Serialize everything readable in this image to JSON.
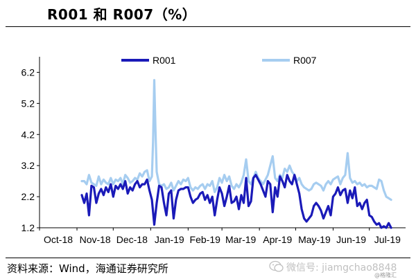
{
  "title": "R001 和 R007（%）",
  "source": "资料来源：Wind，海通证券研究所",
  "watermark": {
    "wechat": "微信号: jiamgchao8848",
    "brand": "@格隆汇"
  },
  "colors": {
    "r001": "#1a1ab8",
    "r007": "#a6cdf0",
    "axis": "#000000"
  },
  "chart_data": {
    "type": "line",
    "title": "R001 和 R007（%）",
    "y_ticks": [
      "1.2",
      "2.2",
      "3.2",
      "4.2",
      "5.2",
      "6.2"
    ],
    "ylim": [
      1.2,
      6.7
    ],
    "x_ticks": [
      "Oct-18",
      "Nov-18",
      "Dec-18",
      "Jan-19",
      "Feb-19",
      "Mar-19",
      "Apr-19",
      "May-19",
      "Jun-19",
      "Jul-19"
    ],
    "x_range": [
      "2018-10-01",
      "2019-07-31"
    ],
    "grid": false,
    "legend": "top",
    "series": [
      {
        "name": "R001",
        "color": "#1a1ab8",
        "points": [
          [
            "2018-11-05",
            2.25
          ],
          [
            "2018-11-07",
            2.0
          ],
          [
            "2018-11-09",
            2.3
          ],
          [
            "2018-11-11",
            1.6
          ],
          [
            "2018-11-13",
            2.55
          ],
          [
            "2018-11-15",
            2.5
          ],
          [
            "2018-11-17",
            2.0
          ],
          [
            "2018-11-19",
            2.3
          ],
          [
            "2018-11-21",
            2.45
          ],
          [
            "2018-11-23",
            2.25
          ],
          [
            "2018-11-25",
            2.5
          ],
          [
            "2018-11-27",
            2.35
          ],
          [
            "2018-11-29",
            2.6
          ],
          [
            "2018-12-01",
            2.2
          ],
          [
            "2018-12-03",
            2.55
          ],
          [
            "2018-12-05",
            2.45
          ],
          [
            "2018-12-07",
            2.6
          ],
          [
            "2018-12-09",
            2.45
          ],
          [
            "2018-12-11",
            2.7
          ],
          [
            "2018-12-13",
            2.3
          ],
          [
            "2018-12-15",
            2.5
          ],
          [
            "2018-12-17",
            2.4
          ],
          [
            "2018-12-19",
            2.6
          ],
          [
            "2018-12-21",
            2.7
          ],
          [
            "2018-12-23",
            2.5
          ],
          [
            "2018-12-25",
            2.6
          ],
          [
            "2018-12-27",
            2.6
          ],
          [
            "2018-12-29",
            2.75
          ],
          [
            "2018-12-31",
            2.4
          ],
          [
            "2019-01-02",
            2.1
          ],
          [
            "2019-01-04",
            1.3
          ],
          [
            "2019-01-06",
            2.0
          ],
          [
            "2019-01-08",
            2.55
          ],
          [
            "2019-01-10",
            2.5
          ],
          [
            "2019-01-12",
            2.0
          ],
          [
            "2019-01-14",
            1.6
          ],
          [
            "2019-01-16",
            2.3
          ],
          [
            "2019-01-18",
            2.4
          ],
          [
            "2019-01-20",
            1.5
          ],
          [
            "2019-01-22",
            2.1
          ],
          [
            "2019-01-24",
            2.4
          ],
          [
            "2019-01-26",
            2.45
          ],
          [
            "2019-01-28",
            2.45
          ],
          [
            "2019-01-30",
            2.5
          ],
          [
            "2019-02-01",
            2.5
          ],
          [
            "2019-02-03",
            2.2
          ],
          [
            "2019-02-05",
            2.0
          ],
          [
            "2019-02-07",
            2.1
          ],
          [
            "2019-02-09",
            2.15
          ],
          [
            "2019-02-11",
            2.3
          ],
          [
            "2019-02-13",
            2.35
          ],
          [
            "2019-02-15",
            2.1
          ],
          [
            "2019-02-17",
            2.25
          ],
          [
            "2019-02-19",
            2.0
          ],
          [
            "2019-02-21",
            2.2
          ],
          [
            "2019-02-23",
            1.6
          ],
          [
            "2019-02-25",
            2.1
          ],
          [
            "2019-02-27",
            2.5
          ],
          [
            "2019-03-01",
            2.3
          ],
          [
            "2019-03-03",
            1.9
          ],
          [
            "2019-03-05",
            2.2
          ],
          [
            "2019-03-07",
            2.55
          ],
          [
            "2019-03-09",
            2.0
          ],
          [
            "2019-03-11",
            2.05
          ],
          [
            "2019-03-13",
            2.2
          ],
          [
            "2019-03-15",
            1.8
          ],
          [
            "2019-03-17",
            2.25
          ],
          [
            "2019-03-19",
            2.0
          ],
          [
            "2019-03-21",
            2.8
          ],
          [
            "2019-03-23",
            1.9
          ],
          [
            "2019-03-25",
            2.05
          ],
          [
            "2019-03-27",
            2.8
          ],
          [
            "2019-03-29",
            2.9
          ],
          [
            "2019-03-31",
            2.75
          ],
          [
            "2019-04-02",
            2.6
          ],
          [
            "2019-04-04",
            2.4
          ],
          [
            "2019-04-06",
            2.2
          ],
          [
            "2019-04-08",
            2.7
          ],
          [
            "2019-04-10",
            2.6
          ],
          [
            "2019-04-12",
            1.7
          ],
          [
            "2019-04-14",
            2.5
          ],
          [
            "2019-04-16",
            2.2
          ],
          [
            "2019-04-18",
            2.85
          ],
          [
            "2019-04-20",
            2.7
          ],
          [
            "2019-04-22",
            2.5
          ],
          [
            "2019-04-24",
            2.9
          ],
          [
            "2019-04-26",
            2.7
          ],
          [
            "2019-04-28",
            2.6
          ],
          [
            "2019-04-30",
            2.9
          ],
          [
            "2019-05-02",
            2.6
          ],
          [
            "2019-05-04",
            2.3
          ],
          [
            "2019-05-06",
            1.8
          ],
          [
            "2019-05-08",
            1.5
          ],
          [
            "2019-05-10",
            1.4
          ],
          [
            "2019-05-12",
            1.5
          ],
          [
            "2019-05-14",
            1.6
          ],
          [
            "2019-05-16",
            1.9
          ],
          [
            "2019-05-18",
            2.0
          ],
          [
            "2019-05-20",
            1.9
          ],
          [
            "2019-05-22",
            1.75
          ],
          [
            "2019-05-24",
            1.5
          ],
          [
            "2019-05-26",
            1.7
          ],
          [
            "2019-05-28",
            1.9
          ],
          [
            "2019-05-30",
            1.6
          ],
          [
            "2019-06-01",
            2.2
          ],
          [
            "2019-06-03",
            2.3
          ],
          [
            "2019-06-05",
            2.5
          ],
          [
            "2019-06-07",
            2.25
          ],
          [
            "2019-06-09",
            2.4
          ],
          [
            "2019-06-11",
            2.45
          ],
          [
            "2019-06-13",
            2.0
          ],
          [
            "2019-06-15",
            2.4
          ],
          [
            "2019-06-17",
            2.15
          ],
          [
            "2019-06-19",
            2.5
          ],
          [
            "2019-06-21",
            1.9
          ],
          [
            "2019-06-23",
            2.0
          ],
          [
            "2019-06-25",
            1.8
          ],
          [
            "2019-06-27",
            2.0
          ],
          [
            "2019-06-29",
            2.1
          ],
          [
            "2019-07-01",
            1.6
          ],
          [
            "2019-07-03",
            1.55
          ],
          [
            "2019-07-05",
            1.4
          ],
          [
            "2019-07-07",
            1.3
          ],
          [
            "2019-07-09",
            1.35
          ],
          [
            "2019-07-11",
            1.2
          ],
          [
            "2019-07-13",
            1.25
          ],
          [
            "2019-07-15",
            1.2
          ],
          [
            "2019-07-17",
            1.35
          ],
          [
            "2019-07-19",
            1.2
          ]
        ]
      },
      {
        "name": "R007",
        "color": "#a6cdf0",
        "points": [
          [
            "2018-11-05",
            2.7
          ],
          [
            "2018-11-07",
            2.7
          ],
          [
            "2018-11-09",
            2.6
          ],
          [
            "2018-11-11",
            2.9
          ],
          [
            "2018-11-13",
            2.65
          ],
          [
            "2018-11-15",
            2.6
          ],
          [
            "2018-11-17",
            2.55
          ],
          [
            "2018-11-19",
            2.85
          ],
          [
            "2018-11-21",
            2.6
          ],
          [
            "2018-11-23",
            2.75
          ],
          [
            "2018-11-25",
            2.65
          ],
          [
            "2018-11-27",
            2.6
          ],
          [
            "2018-11-29",
            2.8
          ],
          [
            "2018-12-01",
            2.6
          ],
          [
            "2018-12-03",
            2.75
          ],
          [
            "2018-12-05",
            2.7
          ],
          [
            "2018-12-07",
            2.8
          ],
          [
            "2018-12-09",
            2.6
          ],
          [
            "2018-12-11",
            2.9
          ],
          [
            "2018-12-13",
            2.8
          ],
          [
            "2018-12-15",
            2.65
          ],
          [
            "2018-12-17",
            2.7
          ],
          [
            "2018-12-19",
            2.8
          ],
          [
            "2018-12-21",
            2.75
          ],
          [
            "2018-12-23",
            2.95
          ],
          [
            "2018-12-25",
            2.85
          ],
          [
            "2018-12-27",
            3.0
          ],
          [
            "2018-12-29",
            3.05
          ],
          [
            "2018-12-31",
            2.7
          ],
          [
            "2019-01-02",
            2.85
          ],
          [
            "2019-01-03",
            4.0
          ],
          [
            "2019-01-04",
            5.95
          ],
          [
            "2019-01-05",
            4.3
          ],
          [
            "2019-01-06",
            3.0
          ],
          [
            "2019-01-08",
            2.6
          ],
          [
            "2019-01-10",
            2.55
          ],
          [
            "2019-01-12",
            2.6
          ],
          [
            "2019-01-14",
            2.45
          ],
          [
            "2019-01-16",
            2.5
          ],
          [
            "2019-01-18",
            2.65
          ],
          [
            "2019-01-20",
            2.4
          ],
          [
            "2019-01-22",
            2.55
          ],
          [
            "2019-01-24",
            2.7
          ],
          [
            "2019-01-26",
            2.6
          ],
          [
            "2019-01-28",
            2.75
          ],
          [
            "2019-01-30",
            2.7
          ],
          [
            "2019-02-01",
            2.8
          ],
          [
            "2019-02-03",
            2.5
          ],
          [
            "2019-02-05",
            2.4
          ],
          [
            "2019-02-07",
            2.5
          ],
          [
            "2019-02-09",
            2.45
          ],
          [
            "2019-02-11",
            2.55
          ],
          [
            "2019-02-13",
            2.6
          ],
          [
            "2019-02-15",
            2.45
          ],
          [
            "2019-02-17",
            2.6
          ],
          [
            "2019-02-19",
            2.55
          ],
          [
            "2019-02-21",
            2.7
          ],
          [
            "2019-02-23",
            2.35
          ],
          [
            "2019-02-25",
            2.5
          ],
          [
            "2019-02-27",
            2.8
          ],
          [
            "2019-03-01",
            2.65
          ],
          [
            "2019-03-03",
            2.9
          ],
          [
            "2019-03-05",
            2.7
          ],
          [
            "2019-03-07",
            2.85
          ],
          [
            "2019-03-09",
            2.55
          ],
          [
            "2019-03-11",
            2.45
          ],
          [
            "2019-03-13",
            2.6
          ],
          [
            "2019-03-15",
            2.5
          ],
          [
            "2019-03-17",
            2.65
          ],
          [
            "2019-03-19",
            2.9
          ],
          [
            "2019-03-21",
            3.4
          ],
          [
            "2019-03-23",
            2.7
          ],
          [
            "2019-03-25",
            2.6
          ],
          [
            "2019-03-27",
            2.8
          ],
          [
            "2019-03-29",
            3.0
          ],
          [
            "2019-03-31",
            2.8
          ],
          [
            "2019-04-02",
            2.7
          ],
          [
            "2019-04-04",
            2.6
          ],
          [
            "2019-04-06",
            2.75
          ],
          [
            "2019-04-08",
            2.9
          ],
          [
            "2019-04-10",
            3.2
          ],
          [
            "2019-04-12",
            3.5
          ],
          [
            "2019-04-14",
            2.8
          ],
          [
            "2019-04-16",
            2.7
          ],
          [
            "2019-04-18",
            2.9
          ],
          [
            "2019-04-20",
            2.8
          ],
          [
            "2019-04-22",
            3.1
          ],
          [
            "2019-04-24",
            3.0
          ],
          [
            "2019-04-26",
            3.2
          ],
          [
            "2019-04-28",
            3.0
          ],
          [
            "2019-04-30",
            2.9
          ],
          [
            "2019-05-02",
            2.7
          ],
          [
            "2019-05-04",
            2.8
          ],
          [
            "2019-05-06",
            2.6
          ],
          [
            "2019-05-08",
            2.5
          ],
          [
            "2019-05-10",
            2.45
          ],
          [
            "2019-05-12",
            2.4
          ],
          [
            "2019-05-14",
            2.45
          ],
          [
            "2019-05-16",
            2.6
          ],
          [
            "2019-05-18",
            2.65
          ],
          [
            "2019-05-20",
            2.6
          ],
          [
            "2019-05-22",
            2.55
          ],
          [
            "2019-05-24",
            2.4
          ],
          [
            "2019-05-26",
            2.6
          ],
          [
            "2019-05-28",
            2.7
          ],
          [
            "2019-05-30",
            2.6
          ],
          [
            "2019-06-01",
            2.75
          ],
          [
            "2019-06-03",
            2.8
          ],
          [
            "2019-06-05",
            2.85
          ],
          [
            "2019-06-07",
            2.6
          ],
          [
            "2019-06-09",
            2.8
          ],
          [
            "2019-06-11",
            2.9
          ],
          [
            "2019-06-13",
            3.6
          ],
          [
            "2019-06-15",
            2.8
          ],
          [
            "2019-06-17",
            2.65
          ],
          [
            "2019-06-19",
            2.7
          ],
          [
            "2019-06-21",
            2.6
          ],
          [
            "2019-06-23",
            2.65
          ],
          [
            "2019-06-25",
            2.55
          ],
          [
            "2019-06-27",
            2.6
          ],
          [
            "2019-06-29",
            2.5
          ],
          [
            "2019-07-01",
            2.55
          ],
          [
            "2019-07-03",
            2.55
          ],
          [
            "2019-07-05",
            2.5
          ],
          [
            "2019-07-07",
            2.45
          ],
          [
            "2019-07-09",
            2.75
          ],
          [
            "2019-07-11",
            2.7
          ],
          [
            "2019-07-13",
            2.4
          ],
          [
            "2019-07-15",
            2.2
          ],
          [
            "2019-07-17",
            2.15
          ],
          [
            "2019-07-19",
            2.1
          ]
        ]
      }
    ]
  }
}
